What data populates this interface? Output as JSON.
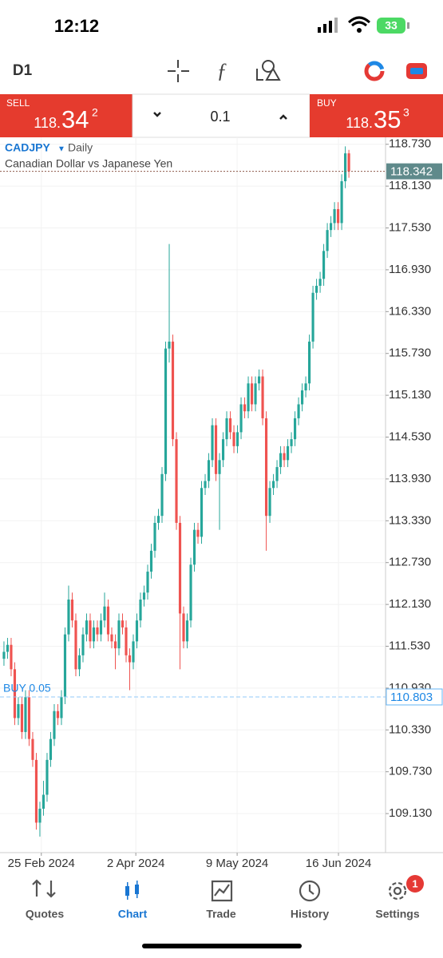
{
  "status_bar": {
    "time": "12:12",
    "battery": "33"
  },
  "toolbar": {
    "timeframe": "D1"
  },
  "trade_panel": {
    "sell": {
      "label": "SELL",
      "price_small": "118.",
      "price_big": "34",
      "price_sup": "2"
    },
    "volume": "0.1",
    "buy": {
      "label": "BUY",
      "price_small": "118.",
      "price_big": "35",
      "price_sup": "3"
    }
  },
  "chart_data": {
    "type": "candlestick",
    "symbol": "CADJPY",
    "timeframe": "Daily",
    "description": "Canadian Dollar vs Japanese Yen",
    "up_color": "#26a69a",
    "down_color": "#ef5350",
    "ylim": [
      108.57,
      118.83
    ],
    "yticks": [
      {
        "value": 118.73,
        "label": "118.730"
      },
      {
        "value": 118.13,
        "label": "118.130"
      },
      {
        "value": 117.53,
        "label": "117.530"
      },
      {
        "value": 116.93,
        "label": "116.930"
      },
      {
        "value": 116.33,
        "label": "116.330"
      },
      {
        "value": 115.73,
        "label": "115.730"
      },
      {
        "value": 115.13,
        "label": "115.130"
      },
      {
        "value": 114.53,
        "label": "114.530"
      },
      {
        "value": 113.93,
        "label": "113.930"
      },
      {
        "value": 113.33,
        "label": "113.330"
      },
      {
        "value": 112.73,
        "label": "112.730"
      },
      {
        "value": 112.13,
        "label": "112.130"
      },
      {
        "value": 111.53,
        "label": "111.530"
      },
      {
        "value": 110.93,
        "label": "110.930"
      },
      {
        "value": 110.33,
        "label": "110.330"
      },
      {
        "value": 109.73,
        "label": "109.730"
      },
      {
        "value": 109.13,
        "label": "109.130"
      }
    ],
    "xlim": [
      -1.1,
      106.2
    ],
    "xticks": [
      {
        "value": 10.4,
        "label": "25 Feb 2024"
      },
      {
        "value": 36.7,
        "label": "2 Apr 2024"
      },
      {
        "value": 64.9,
        "label": "9 May 2024"
      },
      {
        "value": 93.1,
        "label": "16 Jun 2024"
      }
    ],
    "grid": true,
    "bid_line": {
      "value": 118.342
    },
    "position_line": {
      "label": "BUY 0.05",
      "value": 110.803
    },
    "ohlc": [
      [
        111.35,
        111.6,
        111.25,
        111.45
      ],
      [
        111.45,
        111.65,
        111.35,
        111.55
      ],
      [
        111.55,
        111.65,
        111.1,
        111.2
      ],
      [
        111.2,
        111.3,
        110.4,
        110.5
      ],
      [
        110.5,
        110.8,
        110.4,
        110.7
      ],
      [
        110.7,
        110.8,
        110.2,
        110.3
      ],
      [
        110.3,
        110.9,
        110.2,
        110.8
      ],
      [
        110.8,
        110.9,
        110.1,
        110.2
      ],
      [
        110.2,
        110.3,
        109.8,
        109.9
      ],
      [
        109.9,
        110.0,
        108.9,
        109.0
      ],
      [
        109.0,
        109.3,
        108.8,
        109.2
      ],
      [
        109.2,
        109.6,
        109.1,
        109.4
      ],
      [
        109.4,
        110.0,
        109.3,
        109.9
      ],
      [
        109.9,
        110.3,
        109.8,
        110.2
      ],
      [
        110.2,
        110.7,
        110.1,
        110.6
      ],
      [
        110.6,
        110.7,
        110.4,
        110.5
      ],
      [
        110.5,
        110.9,
        110.4,
        110.8
      ],
      [
        110.8,
        111.8,
        110.7,
        111.7
      ],
      [
        111.7,
        112.4,
        111.6,
        112.2
      ],
      [
        112.2,
        112.3,
        111.8,
        111.9
      ],
      [
        111.9,
        112.0,
        111.1,
        111.2
      ],
      [
        111.2,
        111.5,
        111.1,
        111.4
      ],
      [
        111.4,
        111.8,
        111.3,
        111.7
      ],
      [
        111.7,
        112.0,
        111.6,
        111.9
      ],
      [
        111.9,
        112.0,
        111.5,
        111.6
      ],
      [
        111.6,
        111.9,
        111.5,
        111.8
      ],
      [
        111.8,
        111.9,
        111.6,
        111.7
      ],
      [
        111.7,
        112.0,
        111.6,
        111.9
      ],
      [
        111.9,
        112.3,
        111.8,
        112.1
      ],
      [
        112.1,
        112.2,
        111.6,
        111.7
      ],
      [
        111.7,
        111.8,
        111.5,
        111.6
      ],
      [
        111.6,
        111.7,
        111.2,
        111.5
      ],
      [
        111.5,
        112.0,
        111.4,
        111.9
      ],
      [
        111.9,
        112.0,
        111.7,
        111.8
      ],
      [
        111.8,
        111.9,
        111.3,
        111.4
      ],
      [
        111.4,
        111.5,
        110.9,
        111.3
      ],
      [
        111.3,
        111.7,
        111.2,
        111.6
      ],
      [
        111.6,
        112.0,
        111.5,
        111.9
      ],
      [
        111.9,
        112.3,
        111.8,
        112.2
      ],
      [
        112.2,
        112.4,
        112.1,
        112.3
      ],
      [
        112.3,
        112.7,
        112.2,
        112.6
      ],
      [
        112.6,
        113.0,
        112.5,
        112.9
      ],
      [
        112.9,
        113.4,
        112.8,
        113.3
      ],
      [
        113.3,
        113.5,
        113.2,
        113.4
      ],
      [
        113.4,
        114.1,
        113.3,
        114.0
      ],
      [
        114.0,
        115.9,
        113.9,
        115.8
      ],
      [
        115.8,
        117.3,
        115.6,
        115.9
      ],
      [
        115.9,
        116.0,
        114.4,
        114.5
      ],
      [
        114.5,
        114.6,
        113.2,
        113.3
      ],
      [
        113.3,
        113.4,
        111.2,
        112.0
      ],
      [
        112.0,
        112.1,
        111.5,
        111.6
      ],
      [
        111.6,
        112.0,
        111.5,
        111.9
      ],
      [
        111.9,
        112.8,
        111.8,
        112.7
      ],
      [
        112.7,
        113.3,
        112.6,
        113.2
      ],
      [
        113.2,
        113.3,
        113.0,
        113.1
      ],
      [
        113.1,
        113.9,
        113.0,
        113.8
      ],
      [
        113.8,
        114.0,
        113.7,
        113.9
      ],
      [
        113.9,
        114.3,
        113.8,
        114.2
      ],
      [
        114.2,
        114.8,
        114.1,
        114.7
      ],
      [
        114.7,
        114.8,
        113.9,
        114.0
      ],
      [
        114.0,
        114.3,
        113.2,
        114.2
      ],
      [
        114.2,
        114.6,
        114.1,
        114.5
      ],
      [
        114.5,
        114.9,
        114.4,
        114.8
      ],
      [
        114.8,
        114.9,
        114.5,
        114.6
      ],
      [
        114.6,
        114.7,
        114.3,
        114.4
      ],
      [
        114.4,
        114.7,
        114.3,
        114.6
      ],
      [
        114.6,
        115.1,
        114.5,
        115.0
      ],
      [
        115.0,
        115.1,
        114.8,
        114.9
      ],
      [
        114.9,
        115.4,
        114.8,
        115.3
      ],
      [
        115.3,
        115.4,
        114.9,
        115.0
      ],
      [
        115.0,
        115.4,
        114.9,
        115.3
      ],
      [
        115.3,
        115.5,
        115.2,
        115.4
      ],
      [
        115.4,
        115.5,
        114.7,
        114.8
      ],
      [
        114.8,
        114.9,
        112.9,
        113.4
      ],
      [
        113.4,
        113.9,
        113.3,
        113.8
      ],
      [
        113.8,
        114.0,
        113.7,
        113.9
      ],
      [
        113.9,
        114.2,
        113.8,
        114.1
      ],
      [
        114.1,
        114.4,
        114.0,
        114.3
      ],
      [
        114.3,
        114.4,
        114.1,
        114.2
      ],
      [
        114.2,
        114.5,
        114.1,
        114.4
      ],
      [
        114.4,
        114.6,
        114.3,
        114.5
      ],
      [
        114.5,
        114.9,
        114.4,
        114.8
      ],
      [
        114.8,
        115.1,
        114.7,
        115.0
      ],
      [
        115.0,
        115.3,
        114.9,
        115.2
      ],
      [
        115.2,
        115.4,
        115.1,
        115.3
      ],
      [
        115.3,
        116.0,
        115.2,
        115.9
      ],
      [
        115.9,
        116.7,
        115.8,
        116.6
      ],
      [
        116.6,
        116.8,
        116.5,
        116.7
      ],
      [
        116.7,
        116.9,
        116.6,
        116.8
      ],
      [
        116.8,
        117.3,
        116.7,
        117.2
      ],
      [
        117.2,
        117.6,
        117.1,
        117.5
      ],
      [
        117.5,
        117.7,
        117.4,
        117.6
      ],
      [
        117.6,
        117.9,
        117.5,
        117.8
      ],
      [
        117.8,
        117.9,
        117.5,
        117.6
      ],
      [
        117.6,
        118.3,
        117.5,
        118.2
      ],
      [
        118.2,
        118.7,
        118.1,
        118.6
      ],
      [
        118.6,
        118.65,
        118.25,
        118.342
      ]
    ]
  },
  "tab_bar": {
    "tabs": [
      "Quotes",
      "Chart",
      "Trade",
      "History",
      "Settings"
    ],
    "active": 1,
    "badge": "1"
  }
}
